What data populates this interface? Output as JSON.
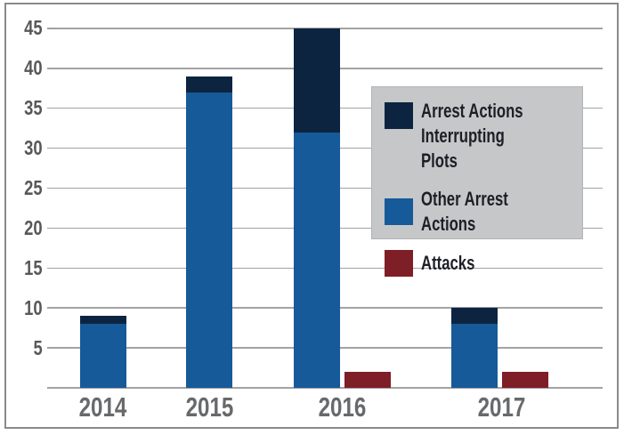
{
  "chart_data": {
    "type": "bar",
    "stacked": true,
    "title": "",
    "xlabel": "",
    "ylabel": "",
    "categories": [
      "2014",
      "2015",
      "2016",
      "2017"
    ],
    "series": [
      {
        "name": "Arrest Actions Interrupting Plots",
        "color": "#0d2440",
        "values": [
          1,
          2,
          13,
          2
        ]
      },
      {
        "name": "Other Arrest Actions",
        "color": "#175a99",
        "values": [
          8,
          37,
          32,
          8
        ]
      },
      {
        "name": "Attacks",
        "color": "#7e1e27",
        "values": [
          0,
          0,
          2,
          2
        ]
      }
    ],
    "stack_totals": [
      9,
      39,
      45,
      10
    ],
    "ylim": [
      0,
      45
    ],
    "yticks": [
      5,
      10,
      15,
      20,
      25,
      30,
      35,
      40,
      45
    ],
    "grid": true,
    "legend_position": "upper-right"
  },
  "colors": {
    "legend_bg": "#c6c7c8",
    "gridline": "#a3a3a3",
    "frame_border": "#8a8a8a",
    "y_tick_text": "#58585a",
    "x_tick_text": "#68696b",
    "legend_text": "#1e1f26",
    "background": "#ffffff"
  }
}
